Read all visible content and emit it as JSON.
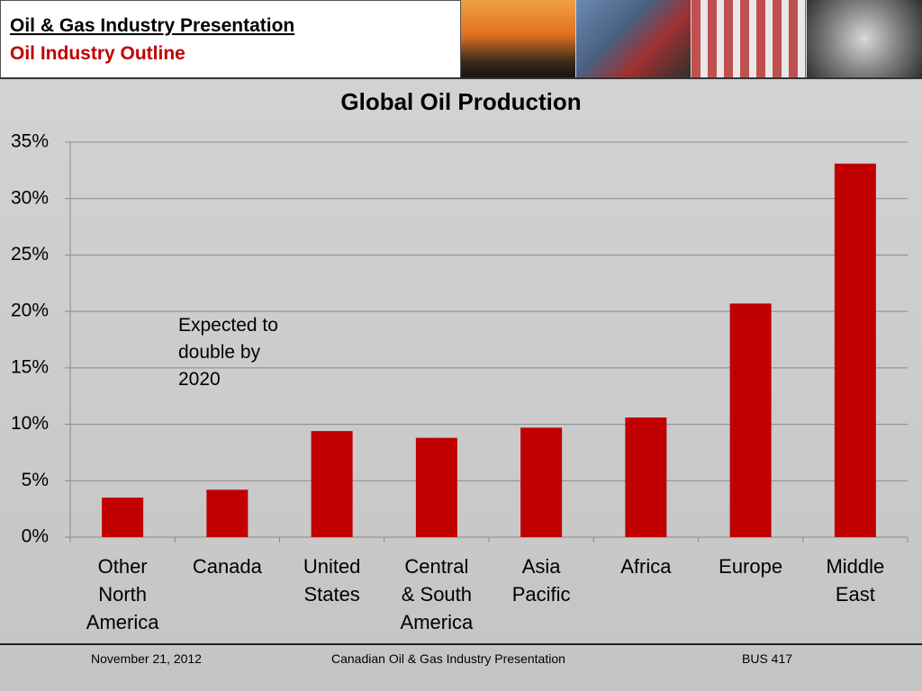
{
  "header": {
    "title": "Oil & Gas Industry Presentation",
    "subtitle": "Oil Industry Outline"
  },
  "chart_data": {
    "type": "bar",
    "title": "Global Oil Production",
    "categories": [
      "Other North America",
      "Canada",
      "United States",
      "Central & South America",
      "Asia Pacific",
      "Africa",
      "Europe",
      "Middle East"
    ],
    "values": [
      3.5,
      4.2,
      9.4,
      8.8,
      9.7,
      10.6,
      20.7,
      33.1
    ],
    "color": "#c00000",
    "ylim": [
      0,
      35
    ],
    "yticks": [
      {
        "value": 0,
        "label": "0%"
      },
      {
        "value": 5,
        "label": "5%"
      },
      {
        "value": 10,
        "label": "10%"
      },
      {
        "value": 15,
        "label": "15%"
      },
      {
        "value": 20,
        "label": "20%"
      },
      {
        "value": 25,
        "label": "25%"
      },
      {
        "value": 30,
        "label": "30%"
      },
      {
        "value": 35,
        "label": "35%"
      }
    ],
    "grid": true,
    "annotation": "Expected to double by 2020"
  },
  "footer": {
    "date": "November 21, 2012",
    "center": "Canadian Oil & Gas Industry Presentation",
    "course": "BUS 417"
  }
}
